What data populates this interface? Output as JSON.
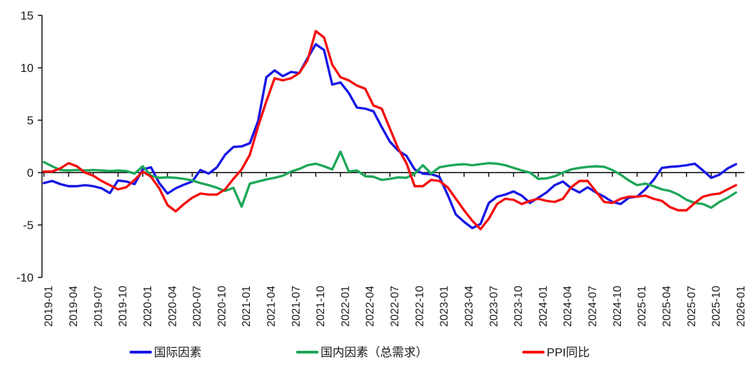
{
  "chart_data": {
    "type": "line",
    "title": "",
    "xlabel": "",
    "ylabel": "",
    "ylim": [
      -10,
      15
    ],
    "y_ticks": [
      15,
      10,
      5,
      0,
      -5,
      -10
    ],
    "grid": false,
    "legend_position": "bottom",
    "x_frequency": "monthly",
    "x_range": [
      "2019-01",
      "2026-01"
    ],
    "x_tick_labels": [
      "2019-01",
      "2019-04",
      "2019-07",
      "2019-10",
      "2020-01",
      "2020-04",
      "2020-07",
      "2020-10",
      "2021-01",
      "2021-04",
      "2021-07",
      "2021-10",
      "2022-01",
      "2022-04",
      "2022-07",
      "2022-10",
      "2023-01",
      "2023-04",
      "2023-07",
      "2023-10",
      "2024-01",
      "2024-04",
      "2024-07",
      "2024-10",
      "2025-01",
      "2025-04",
      "2025-07",
      "2025-10",
      "2026-01"
    ],
    "series": [
      {
        "name": "国际因素",
        "color": "#1717e6",
        "values": [
          -1.0,
          -0.8,
          -1.1,
          -1.3,
          -1.3,
          -1.2,
          -1.3,
          -1.5,
          -1.95,
          -0.75,
          -0.85,
          -1.1,
          0.3,
          0.5,
          -1.0,
          -2.0,
          -1.5,
          -1.15,
          -0.85,
          0.25,
          -0.1,
          0.5,
          1.7,
          2.45,
          2.5,
          2.8,
          4.9,
          9.1,
          9.75,
          9.2,
          9.6,
          9.5,
          10.9,
          12.25,
          11.7,
          8.4,
          8.6,
          7.6,
          6.2,
          6.1,
          5.85,
          4.35,
          2.95,
          2.1,
          1.6,
          0.3,
          -0.1,
          -0.15,
          -0.4,
          -2.1,
          -4.0,
          -4.7,
          -5.3,
          -4.9,
          -2.9,
          -2.3,
          -2.1,
          -1.8,
          -2.2,
          -2.9,
          -2.4,
          -1.9,
          -1.2,
          -0.85,
          -1.5,
          -1.9,
          -1.4,
          -1.9,
          -2.3,
          -2.8,
          -3.0,
          -2.4,
          -2.3,
          -1.6,
          -0.7,
          0.45,
          0.55,
          0.6,
          0.7,
          0.85,
          0.2,
          -0.5,
          -0.2,
          0.4,
          0.8
        ]
      },
      {
        "name": "国内因素（总需求）",
        "color": "#1ea758",
        "values": [
          1.0,
          0.6,
          0.25,
          0.2,
          0.25,
          0.2,
          0.25,
          0.2,
          0.15,
          0.2,
          0.15,
          -0.1,
          0.6,
          -0.3,
          -0.5,
          -0.45,
          -0.5,
          -0.6,
          -0.75,
          -1.0,
          -1.2,
          -1.45,
          -1.75,
          -1.45,
          -3.25,
          -1.05,
          -0.85,
          -0.65,
          -0.5,
          -0.3,
          0.1,
          0.35,
          0.7,
          0.85,
          0.6,
          0.3,
          2.0,
          0.1,
          0.2,
          -0.35,
          -0.4,
          -0.7,
          -0.6,
          -0.45,
          -0.5,
          -0.1,
          0.7,
          -0.1,
          0.5,
          0.65,
          0.75,
          0.8,
          0.7,
          0.8,
          0.9,
          0.85,
          0.7,
          0.45,
          0.2,
          0.0,
          -0.6,
          -0.55,
          -0.35,
          0.0,
          0.3,
          0.45,
          0.55,
          0.6,
          0.55,
          0.25,
          -0.2,
          -0.75,
          -1.2,
          -1.05,
          -1.3,
          -1.6,
          -1.75,
          -2.1,
          -2.6,
          -2.9,
          -3.0,
          -3.35,
          -2.8,
          -2.4,
          -1.9
        ]
      },
      {
        "name": "PPI同比",
        "color": "#f40f0f",
        "values": [
          0.1,
          0.1,
          0.4,
          0.9,
          0.6,
          0.0,
          -0.3,
          -0.8,
          -1.2,
          -1.6,
          -1.4,
          -0.7,
          0.1,
          -0.4,
          -1.5,
          -3.1,
          -3.7,
          -3.0,
          -2.4,
          -2.0,
          -2.1,
          -2.1,
          -1.6,
          -0.6,
          0.3,
          1.7,
          4.4,
          6.8,
          9.0,
          8.8,
          9.0,
          9.5,
          10.7,
          13.5,
          12.9,
          10.3,
          9.1,
          8.8,
          8.3,
          8.0,
          6.4,
          6.1,
          4.2,
          2.3,
          0.9,
          -1.3,
          -1.3,
          -0.7,
          -0.8,
          -1.4,
          -2.5,
          -3.6,
          -4.6,
          -5.4,
          -4.4,
          -3.0,
          -2.5,
          -2.6,
          -3.0,
          -2.7,
          -2.5,
          -2.7,
          -2.8,
          -2.5,
          -1.4,
          -0.8,
          -0.8,
          -1.8,
          -2.8,
          -2.9,
          -2.5,
          -2.3,
          -2.3,
          -2.2,
          -2.5,
          -2.7,
          -3.3,
          -3.6,
          -3.6,
          -2.9,
          -2.3,
          -2.1,
          -2.0,
          -1.6,
          -1.2
        ]
      }
    ],
    "axis_color": "#000000",
    "tick_label_color": "#1a1a1a"
  }
}
